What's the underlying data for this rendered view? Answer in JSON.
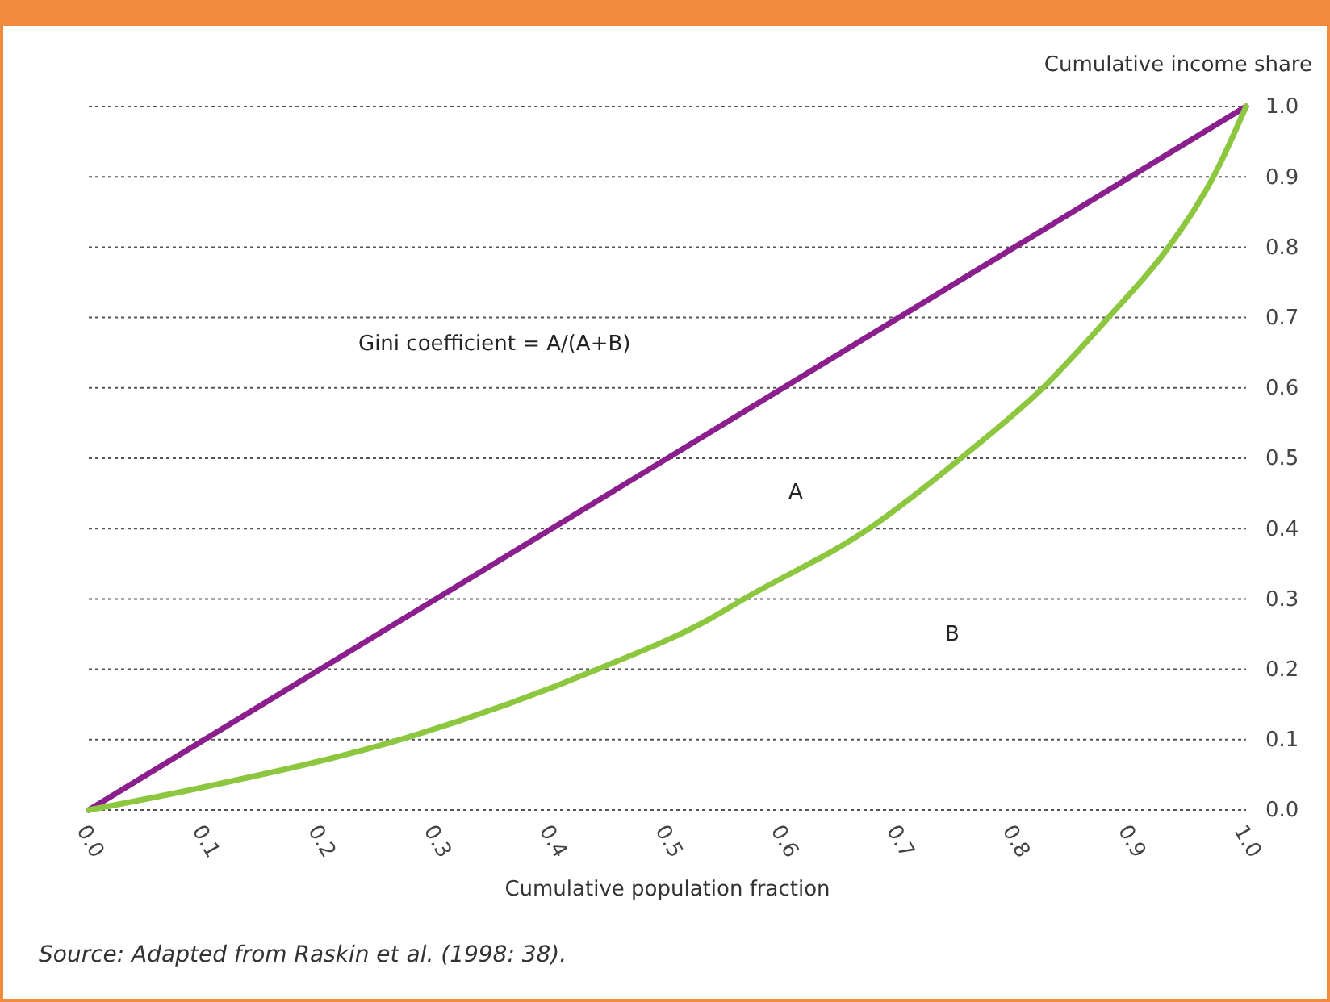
{
  "chart_data": {
    "type": "line",
    "xlabel": "Cumulative population fraction",
    "ylabel": "Cumulative income share",
    "xlim": [
      0,
      1
    ],
    "ylim": [
      0,
      1
    ],
    "xticks": [
      {
        "value": 0,
        "label": "0.0"
      },
      {
        "value": 0.1,
        "label": "0.1"
      },
      {
        "value": 0.2,
        "label": "0.2"
      },
      {
        "value": 0.3,
        "label": "0.3"
      },
      {
        "value": 0.4,
        "label": "0.4"
      },
      {
        "value": 0.5,
        "label": "0.5"
      },
      {
        "value": 0.6,
        "label": "0.6"
      },
      {
        "value": 0.7,
        "label": "0.7"
      },
      {
        "value": 0.8,
        "label": "0.8"
      },
      {
        "value": 0.9,
        "label": "0.9"
      },
      {
        "value": 1,
        "label": "1.0"
      }
    ],
    "yticks": [
      {
        "value": 0,
        "label": "0.0"
      },
      {
        "value": 0.1,
        "label": "0.1"
      },
      {
        "value": 0.2,
        "label": "0.2"
      },
      {
        "value": 0.3,
        "label": "0.3"
      },
      {
        "value": 0.4,
        "label": "0.4"
      },
      {
        "value": 0.5,
        "label": "0.5"
      },
      {
        "value": 0.6,
        "label": "0.6"
      },
      {
        "value": 0.7,
        "label": "0.7"
      },
      {
        "value": 0.8,
        "label": "0.8"
      },
      {
        "value": 0.9,
        "label": "0.9"
      },
      {
        "value": 1,
        "label": "1.0"
      }
    ],
    "grid": "y",
    "line_style": "solid",
    "series": [
      {
        "color": "#8b1f8e",
        "x": [
          0,
          1
        ],
        "values": [
          0,
          1
        ]
      },
      {
        "color": "#8dc63f",
        "x": [
          0,
          0.095,
          0.277,
          0.444,
          0.537,
          0.565,
          0.676,
          0.755,
          0.825,
          0.881,
          0.933,
          0.974,
          1
        ],
        "values": [
          0,
          0.031,
          0.104,
          0.203,
          0.272,
          0.299,
          0.402,
          0.502,
          0.601,
          0.7,
          0.8,
          0.907,
          1
        ]
      }
    ],
    "annotations": [
      "Gini coefficient = A/(A+B)",
      "A",
      "B",
      "Source: Adapted from Raskin et al. (1998: 38)."
    ]
  }
}
